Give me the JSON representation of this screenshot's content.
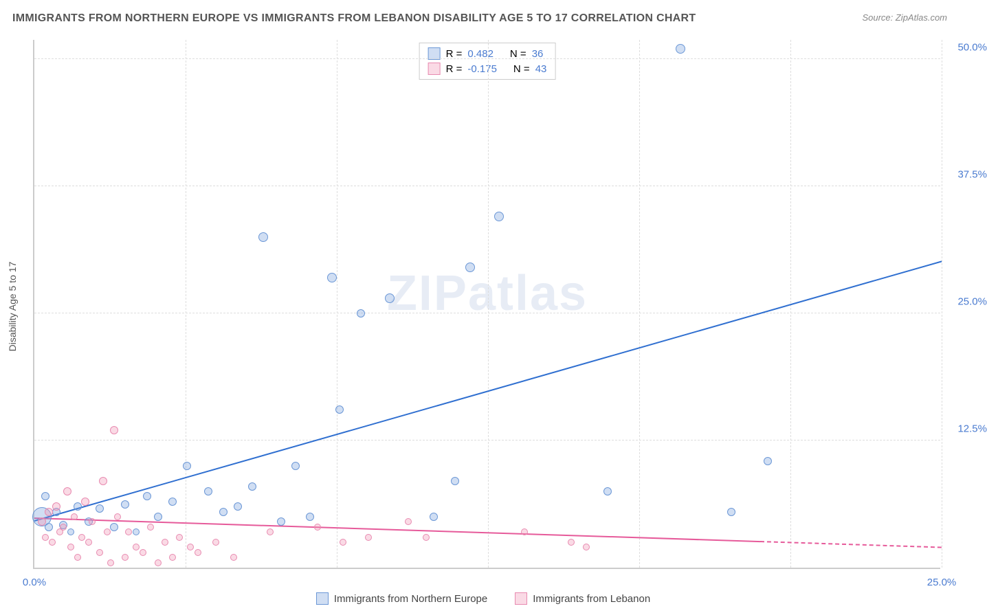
{
  "title": "IMMIGRANTS FROM NORTHERN EUROPE VS IMMIGRANTS FROM LEBANON DISABILITY AGE 5 TO 17 CORRELATION CHART",
  "source": "Source: ZipAtlas.com",
  "watermark": "ZIPatlas",
  "ylabel": "Disability Age 5 to 17",
  "chart": {
    "type": "scatter",
    "xlim": [
      0,
      25
    ],
    "ylim": [
      0,
      52
    ],
    "xticks": [
      {
        "v": 0,
        "l": "0.0%"
      },
      {
        "v": 25,
        "l": "25.0%"
      }
    ],
    "yticks": [
      {
        "v": 12.5,
        "l": "12.5%"
      },
      {
        "v": 25,
        "l": "25.0%"
      },
      {
        "v": 37.5,
        "l": "37.5%"
      },
      {
        "v": 50,
        "l": "50.0%"
      }
    ],
    "xgrid": [
      4.17,
      8.33,
      12.5,
      16.67,
      20.83,
      25
    ],
    "background_color": "#ffffff",
    "grid_color": "#dddddd",
    "axis_color": "#cccccc",
    "series": [
      {
        "name": "Immigrants from Northern Europe",
        "color_fill": "rgba(120,160,220,0.35)",
        "color_stroke": "#6b97d6",
        "R": "0.482",
        "N": "36",
        "trend": {
          "x1": 0,
          "y1": 4.5,
          "x2": 25,
          "y2": 30,
          "color": "#2f6fd0",
          "dash_after_x": 25
        },
        "points": [
          {
            "x": 0.2,
            "y": 5.0,
            "r": 14
          },
          {
            "x": 0.3,
            "y": 7.0,
            "r": 6
          },
          {
            "x": 0.4,
            "y": 4.0,
            "r": 6
          },
          {
            "x": 0.6,
            "y": 5.5,
            "r": 6
          },
          {
            "x": 0.8,
            "y": 4.2,
            "r": 6
          },
          {
            "x": 1.0,
            "y": 3.5,
            "r": 5
          },
          {
            "x": 1.2,
            "y": 6.0,
            "r": 6
          },
          {
            "x": 1.5,
            "y": 4.5,
            "r": 6
          },
          {
            "x": 1.8,
            "y": 5.8,
            "r": 6
          },
          {
            "x": 2.2,
            "y": 4.0,
            "r": 6
          },
          {
            "x": 2.5,
            "y": 6.2,
            "r": 6
          },
          {
            "x": 2.8,
            "y": 3.5,
            "r": 5
          },
          {
            "x": 3.1,
            "y": 7.0,
            "r": 6
          },
          {
            "x": 3.4,
            "y": 5.0,
            "r": 6
          },
          {
            "x": 3.8,
            "y": 6.5,
            "r": 6
          },
          {
            "x": 4.2,
            "y": 10.0,
            "r": 6
          },
          {
            "x": 4.8,
            "y": 7.5,
            "r": 6
          },
          {
            "x": 5.2,
            "y": 5.5,
            "r": 6
          },
          {
            "x": 5.6,
            "y": 6.0,
            "r": 6
          },
          {
            "x": 6.0,
            "y": 8.0,
            "r": 6
          },
          {
            "x": 6.3,
            "y": 32.5,
            "r": 7
          },
          {
            "x": 6.8,
            "y": 4.5,
            "r": 6
          },
          {
            "x": 7.2,
            "y": 10.0,
            "r": 6
          },
          {
            "x": 7.6,
            "y": 5.0,
            "r": 6
          },
          {
            "x": 8.2,
            "y": 28.5,
            "r": 7
          },
          {
            "x": 8.4,
            "y": 15.5,
            "r": 6
          },
          {
            "x": 9.0,
            "y": 25.0,
            "r": 6
          },
          {
            "x": 9.8,
            "y": 26.5,
            "r": 7
          },
          {
            "x": 11.0,
            "y": 5.0,
            "r": 6
          },
          {
            "x": 11.6,
            "y": 8.5,
            "r": 6
          },
          {
            "x": 12.0,
            "y": 29.5,
            "r": 7
          },
          {
            "x": 12.8,
            "y": 34.5,
            "r": 7
          },
          {
            "x": 15.8,
            "y": 7.5,
            "r": 6
          },
          {
            "x": 17.8,
            "y": 51.0,
            "r": 7
          },
          {
            "x": 19.2,
            "y": 5.5,
            "r": 6
          },
          {
            "x": 20.2,
            "y": 10.5,
            "r": 6
          }
        ]
      },
      {
        "name": "Immigrants from Lebanon",
        "color_fill": "rgba(240,150,180,0.35)",
        "color_stroke": "#e88ab0",
        "R": "-0.175",
        "N": "43",
        "trend": {
          "x1": 0,
          "y1": 4.8,
          "x2": 20,
          "y2": 2.5,
          "color": "#e65a9a",
          "dash_after_x": 20
        },
        "points": [
          {
            "x": 0.2,
            "y": 4.5,
            "r": 6
          },
          {
            "x": 0.3,
            "y": 3.0,
            "r": 5
          },
          {
            "x": 0.4,
            "y": 5.5,
            "r": 6
          },
          {
            "x": 0.5,
            "y": 2.5,
            "r": 5
          },
          {
            "x": 0.6,
            "y": 6.0,
            "r": 6
          },
          {
            "x": 0.7,
            "y": 3.5,
            "r": 5
          },
          {
            "x": 0.8,
            "y": 4.0,
            "r": 5
          },
          {
            "x": 0.9,
            "y": 7.5,
            "r": 6
          },
          {
            "x": 1.0,
            "y": 2.0,
            "r": 5
          },
          {
            "x": 1.1,
            "y": 5.0,
            "r": 5
          },
          {
            "x": 1.2,
            "y": 1.0,
            "r": 5
          },
          {
            "x": 1.3,
            "y": 3.0,
            "r": 5
          },
          {
            "x": 1.4,
            "y": 6.5,
            "r": 6
          },
          {
            "x": 1.5,
            "y": 2.5,
            "r": 5
          },
          {
            "x": 1.6,
            "y": 4.5,
            "r": 5
          },
          {
            "x": 1.8,
            "y": 1.5,
            "r": 5
          },
          {
            "x": 1.9,
            "y": 8.5,
            "r": 6
          },
          {
            "x": 2.0,
            "y": 3.5,
            "r": 5
          },
          {
            "x": 2.1,
            "y": 0.5,
            "r": 5
          },
          {
            "x": 2.2,
            "y": 13.5,
            "r": 6
          },
          {
            "x": 2.3,
            "y": 5.0,
            "r": 5
          },
          {
            "x": 2.5,
            "y": 1.0,
            "r": 5
          },
          {
            "x": 2.6,
            "y": 3.5,
            "r": 5
          },
          {
            "x": 2.8,
            "y": 2.0,
            "r": 5
          },
          {
            "x": 3.0,
            "y": 1.5,
            "r": 5
          },
          {
            "x": 3.2,
            "y": 4.0,
            "r": 5
          },
          {
            "x": 3.4,
            "y": 0.5,
            "r": 5
          },
          {
            "x": 3.6,
            "y": 2.5,
            "r": 5
          },
          {
            "x": 3.8,
            "y": 1.0,
            "r": 5
          },
          {
            "x": 4.0,
            "y": 3.0,
            "r": 5
          },
          {
            "x": 4.3,
            "y": 2.0,
            "r": 5
          },
          {
            "x": 4.5,
            "y": 1.5,
            "r": 5
          },
          {
            "x": 5.0,
            "y": 2.5,
            "r": 5
          },
          {
            "x": 5.5,
            "y": 1.0,
            "r": 5
          },
          {
            "x": 6.5,
            "y": 3.5,
            "r": 5
          },
          {
            "x": 7.8,
            "y": 4.0,
            "r": 5
          },
          {
            "x": 8.5,
            "y": 2.5,
            "r": 5
          },
          {
            "x": 9.2,
            "y": 3.0,
            "r": 5
          },
          {
            "x": 10.3,
            "y": 4.5,
            "r": 5
          },
          {
            "x": 10.8,
            "y": 3.0,
            "r": 5
          },
          {
            "x": 13.5,
            "y": 3.5,
            "r": 5
          },
          {
            "x": 14.8,
            "y": 2.5,
            "r": 5
          },
          {
            "x": 15.2,
            "y": 2.0,
            "r": 5
          }
        ]
      }
    ]
  },
  "legend_top": {
    "R_label": "R  =",
    "N_label": "N  ="
  },
  "tick_color": "#4a7bd0",
  "title_color": "#555555"
}
